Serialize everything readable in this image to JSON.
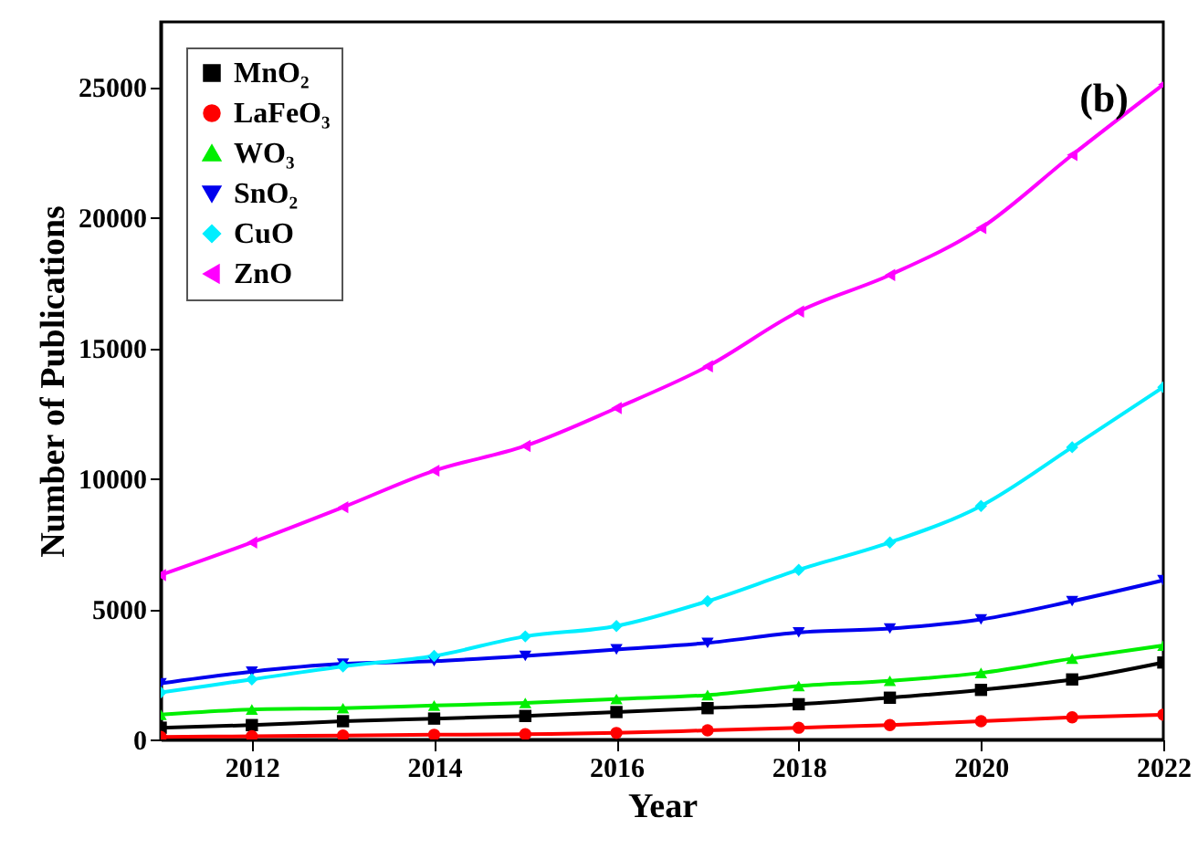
{
  "chart_data": {
    "type": "line",
    "xlabel": "Year",
    "ylabel": "Number of Publications",
    "annotations": [
      "(b)"
    ],
    "x": [
      2011,
      2012,
      2013,
      2014,
      2015,
      2016,
      2017,
      2018,
      2019,
      2020,
      2021,
      2022
    ],
    "xlim": [
      2011,
      2022
    ],
    "xticks": [
      2012,
      2014,
      2016,
      2018,
      2020,
      2022
    ],
    "ylim": [
      0,
      27500
    ],
    "yticks": [
      0,
      5000,
      10000,
      15000,
      20000,
      25000
    ],
    "grid": false,
    "legend": "top left",
    "series": [
      {
        "name": "MnO₂",
        "color": "#000000",
        "marker": "square",
        "values": [
          450,
          550,
          700,
          800,
          900,
          1050,
          1200,
          1350,
          1600,
          1900,
          2300,
          2950
        ]
      },
      {
        "name": "LaFeO₃",
        "color": "#ff0000",
        "marker": "circle",
        "values": [
          100,
          120,
          150,
          180,
          200,
          250,
          350,
          450,
          550,
          700,
          850,
          950
        ]
      },
      {
        "name": "WO₃",
        "color": "#00ee00",
        "marker": "triangle",
        "values": [
          950,
          1150,
          1200,
          1300,
          1400,
          1550,
          1700,
          2050,
          2250,
          2550,
          3100,
          3600
        ]
      },
      {
        "name": "SnO₂",
        "color": "#0000ee",
        "marker": "triangle-down",
        "values": [
          2150,
          2600,
          2900,
          3000,
          3200,
          3450,
          3700,
          4100,
          4250,
          4600,
          5300,
          6100
        ]
      },
      {
        "name": "CuO",
        "color": "#00eeff",
        "marker": "diamond",
        "values": [
          1800,
          2300,
          2800,
          3200,
          3950,
          4350,
          5300,
          6500,
          7550,
          8950,
          11200,
          13500
        ]
      },
      {
        "name": "ZnO",
        "color": "#ff00ff",
        "marker": "triangle-left",
        "values": [
          6300,
          7550,
          8900,
          10300,
          11250,
          12700,
          14300,
          16400,
          17800,
          19600,
          22400,
          25100
        ]
      }
    ]
  }
}
